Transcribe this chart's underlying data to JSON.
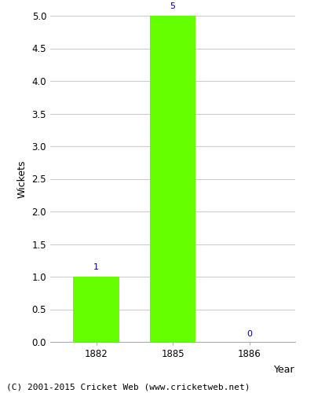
{
  "categories": [
    "1882",
    "1885",
    "1886"
  ],
  "values": [
    1,
    5,
    0
  ],
  "bar_color": "#66ff00",
  "bar_width": 0.6,
  "xlabel": "Year",
  "ylabel": "Wickets",
  "ylim": [
    0,
    5.0
  ],
  "yticks": [
    0.0,
    0.5,
    1.0,
    1.5,
    2.0,
    2.5,
    3.0,
    3.5,
    4.0,
    4.5,
    5.0
  ],
  "annotation_color": "#000080",
  "annotation_fontsize": 8,
  "grid_color": "#cccccc",
  "background_color": "#ffffff",
  "footer_text": "(C) 2001-2015 Cricket Web (www.cricketweb.net)",
  "footer_fontsize": 8,
  "axis_label_fontsize": 9,
  "tick_fontsize": 8.5
}
